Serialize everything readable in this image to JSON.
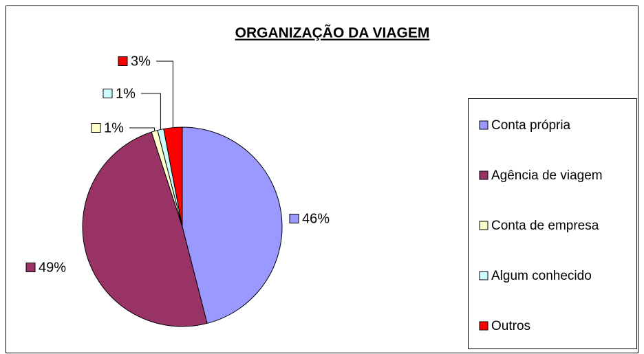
{
  "chart_data": {
    "type": "pie",
    "title": "ORGANIZAÇÃO DA VIAGEM",
    "categories": [
      "Conta própria",
      "Agência de viagem",
      "Conta de empresa",
      "Algum conhecido",
      "Outros"
    ],
    "values": [
      46,
      49,
      1,
      1,
      3
    ],
    "value_labels": [
      "46%",
      "49%",
      "1%",
      "1%",
      "3%"
    ],
    "colors": [
      "#9999ff",
      "#993366",
      "#ffffcc",
      "#ccffff",
      "#ff0000"
    ],
    "legend": "right"
  }
}
